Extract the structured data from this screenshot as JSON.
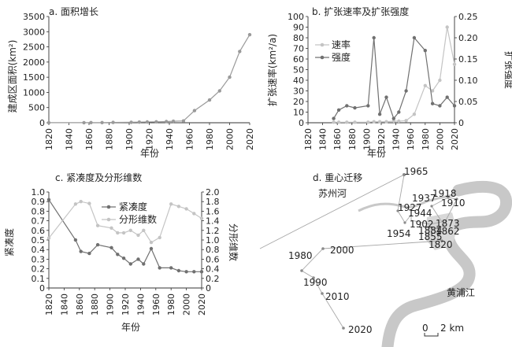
{
  "chart_data": [
    {
      "id": "a",
      "type": "line",
      "title": "a. 面积增长",
      "xlabel": "年份",
      "ylabel": "建成区面积(km²)",
      "xlim": [
        1820,
        2020
      ],
      "ylim": [
        0,
        3500
      ],
      "xticks": [
        1820,
        1840,
        1860,
        1880,
        1900,
        1920,
        1940,
        1960,
        1980,
        2000,
        2020
      ],
      "yticks": [
        0,
        500,
        1000,
        1500,
        2000,
        2500,
        3000,
        3500
      ],
      "grid": false,
      "series": [
        {
          "color": "#9a9a9a",
          "x": [
            1820,
            1855,
            1862,
            1873,
            1884,
            1902,
            1910,
            1918,
            1927,
            1937,
            1944,
            1954,
            1965,
            1980,
            1990,
            2000,
            2010,
            2020
          ],
          "y": [
            2,
            3,
            4,
            6,
            10,
            15,
            20,
            25,
            30,
            40,
            50,
            60,
            400,
            750,
            1050,
            1500,
            2350,
            2900
          ]
        }
      ]
    },
    {
      "id": "b",
      "type": "line",
      "title": "b. 扩张速率及扩张强度",
      "xlabel": "年份",
      "ylabel": "扩张速率(km²/a)",
      "ylabel_right": "扩张强度",
      "xlim": [
        1820,
        2020
      ],
      "ylim": [
        0,
        100
      ],
      "ylim_right": [
        0,
        0.25
      ],
      "xticks": [
        1820,
        1840,
        1860,
        1880,
        1900,
        1920,
        1940,
        1960,
        1980,
        2000,
        2020
      ],
      "yticks": [
        0,
        10,
        20,
        30,
        40,
        50,
        60,
        70,
        80,
        90,
        100
      ],
      "yticks_right": [
        "0",
        "0.05",
        "0.10",
        "0.15",
        "0.20",
        "0.25"
      ],
      "legend": "top-left",
      "series": [
        {
          "name": "速率",
          "axis": "left",
          "color": "#c4c4c4",
          "x": [
            1855,
            1862,
            1873,
            1884,
            1902,
            1910,
            1918,
            1927,
            1937,
            1944,
            1954,
            1965,
            1980,
            1990,
            2000,
            2010,
            2020
          ],
          "y": [
            0.5,
            0.5,
            0.5,
            0.5,
            0.5,
            1,
            1,
            1,
            1.5,
            1.5,
            2,
            8,
            35,
            30,
            40,
            90,
            55
          ]
        },
        {
          "name": "强度",
          "axis": "right",
          "color": "#707070",
          "x": [
            1855,
            1862,
            1873,
            1884,
            1902,
            1910,
            1918,
            1927,
            1937,
            1944,
            1954,
            1965,
            1980,
            1990,
            2000,
            2010,
            2020
          ],
          "y": [
            0.01,
            0.03,
            0.04,
            0.035,
            0.04,
            0.2,
            0.02,
            0.06,
            0.01,
            0.025,
            0.075,
            0.2,
            0.17,
            0.045,
            0.04,
            0.06,
            0.04
          ]
        }
      ]
    },
    {
      "id": "c",
      "type": "line",
      "title": "c. 紧凑度及分形维数",
      "xlabel": "年份",
      "ylabel": "紧凑度",
      "ylabel_right": "分形维数",
      "xlim": [
        1820,
        2020
      ],
      "ylim": [
        0,
        1.0
      ],
      "ylim_right": [
        0,
        2.0
      ],
      "xticks": [
        1820,
        1840,
        1860,
        1880,
        1900,
        1920,
        1940,
        1960,
        1980,
        2000,
        2020
      ],
      "yticks": [
        "0",
        "0.1",
        "0.2",
        "0.3",
        "0.4",
        "0.5",
        "0.6",
        "0.7",
        "0.8",
        "0.9",
        "1.0"
      ],
      "yticks_right": [
        "0",
        "0.2",
        "0.4",
        "0.6",
        "0.8",
        "1.0",
        "1.2",
        "1.4",
        "1.6",
        "1.8",
        "2.0"
      ],
      "legend": "top-right",
      "series": [
        {
          "name": "紧凑度",
          "axis": "left",
          "color": "#707070",
          "x": [
            1820,
            1855,
            1862,
            1873,
            1884,
            1902,
            1910,
            1918,
            1927,
            1937,
            1944,
            1954,
            1965,
            1980,
            1990,
            2000,
            2010,
            2020
          ],
          "y": [
            0.92,
            0.5,
            0.38,
            0.36,
            0.45,
            0.42,
            0.35,
            0.31,
            0.25,
            0.3,
            0.25,
            0.41,
            0.21,
            0.21,
            0.18,
            0.17,
            0.17,
            0.17
          ]
        },
        {
          "name": "分形维数",
          "axis": "right",
          "color": "#c4c4c4",
          "x": [
            1820,
            1855,
            1862,
            1873,
            1884,
            1902,
            1910,
            1918,
            1927,
            1937,
            1944,
            1954,
            1965,
            1980,
            1990,
            2000,
            2010,
            2020
          ],
          "y": [
            1.04,
            1.75,
            1.8,
            1.76,
            1.3,
            1.25,
            1.15,
            1.15,
            1.2,
            1.1,
            1.2,
            0.95,
            1.05,
            1.75,
            1.7,
            1.65,
            1.55,
            1.45
          ]
        }
      ]
    }
  ],
  "map": {
    "title": "d. 重心迁移",
    "river_north_label": "苏州河",
    "river_main_label": "黄浦江",
    "scale_zero": "0",
    "scale_label": "2 km",
    "year_labels": [
      "1965",
      "1937",
      "1918",
      "1927",
      "1910",
      "1944",
      "1873",
      "1902",
      "1884",
      "1862",
      "1855",
      "1954",
      "1820",
      "2000",
      "1980",
      "1990",
      "2010",
      "2020"
    ]
  }
}
